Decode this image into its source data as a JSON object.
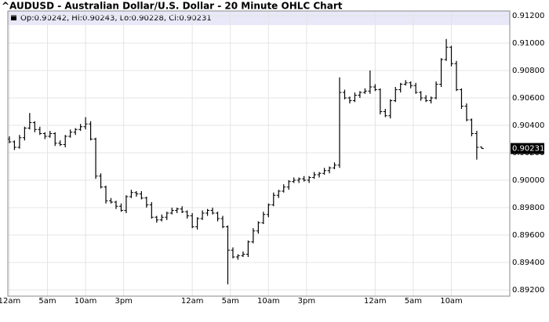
{
  "chart_data": {
    "type": "ohlc",
    "title": "^AUDUSD - Australian Dollar/U.S. Dollar - 20 Minute OHLC Chart",
    "ohlc_legend": "Op:0.90242, Hi:0.90243, Lo:0.90228, Cl:0.90231",
    "color": "#000000",
    "grid": true,
    "xlim": [
      -0.3,
      98.5
    ],
    "xticks": [
      {
        "value": 0,
        "label": "12am"
      },
      {
        "value": 7.5,
        "label": "5am"
      },
      {
        "value": 15,
        "label": "10am"
      },
      {
        "value": 22.5,
        "label": "3pm"
      },
      {
        "value": 36,
        "label": "12am"
      },
      {
        "value": 43.5,
        "label": "5am"
      },
      {
        "value": 51,
        "label": "10am"
      },
      {
        "value": 58.5,
        "label": "3pm"
      },
      {
        "value": 72,
        "label": "12am"
      },
      {
        "value": 79.5,
        "label": "5am"
      },
      {
        "value": 87,
        "label": "10am"
      }
    ],
    "ylim": [
      0.892,
      0.912
    ],
    "yticks": [
      {
        "value": 0.892,
        "label": "0.89200"
      },
      {
        "value": 0.894,
        "label": "0.89400"
      },
      {
        "value": 0.896,
        "label": "0.89600"
      },
      {
        "value": 0.898,
        "label": "0.89800"
      },
      {
        "value": 0.9,
        "label": "0.90000"
      },
      {
        "value": 0.902,
        "label": "0.90200"
      },
      {
        "value": 0.904,
        "label": "0.90400"
      },
      {
        "value": 0.906,
        "label": "0.90600"
      },
      {
        "value": 0.908,
        "label": "0.90800"
      },
      {
        "value": 0.91,
        "label": "0.91000"
      },
      {
        "value": 0.912,
        "label": "0.91200"
      }
    ],
    "open": [
      0.903,
      0.9028,
      0.9024,
      0.9031,
      0.9038,
      0.9042,
      0.9037,
      0.9034,
      0.9032,
      0.9034,
      0.9027,
      0.9026,
      0.9032,
      0.9035,
      0.9037,
      0.9039,
      0.9041,
      0.903,
      0.9003,
      0.8995,
      0.8985,
      0.8984,
      0.8981,
      0.8978,
      0.8988,
      0.8991,
      0.899,
      0.8987,
      0.8982,
      0.8973,
      0.8971,
      0.8973,
      0.8976,
      0.8978,
      0.8979,
      0.8977,
      0.8974,
      0.8966,
      0.8972,
      0.8976,
      0.8978,
      0.8976,
      0.8972,
      0.8966,
      0.8949,
      0.8944,
      0.8945,
      0.8946,
      0.8955,
      0.8963,
      0.8969,
      0.8975,
      0.8982,
      0.8989,
      0.8992,
      0.8995,
      0.8999,
      0.9,
      0.9001,
      0.9,
      0.9002,
      0.9004,
      0.9005,
      0.9007,
      0.9009,
      0.9011,
      0.9064,
      0.906,
      0.9058,
      0.9062,
      0.9064,
      0.9065,
      0.9068,
      0.9066,
      0.905,
      0.9047,
      0.9058,
      0.9066,
      0.907,
      0.9071,
      0.9069,
      0.9064,
      0.906,
      0.9058,
      0.906,
      0.907,
      0.9088,
      0.9097,
      0.9085,
      0.9066,
      0.9054,
      0.9044,
      0.9034,
      0.90242
    ],
    "high": [
      0.9032,
      0.9029,
      0.9033,
      0.9039,
      0.9049,
      0.9043,
      0.9039,
      0.9035,
      0.9036,
      0.9035,
      0.9029,
      0.9033,
      0.9037,
      0.9038,
      0.9041,
      0.9046,
      0.9043,
      0.9031,
      0.9005,
      0.8996,
      0.8987,
      0.8985,
      0.8983,
      0.8989,
      0.8993,
      0.8992,
      0.8992,
      0.8988,
      0.8984,
      0.8974,
      0.8975,
      0.8977,
      0.898,
      0.898,
      0.8981,
      0.8978,
      0.8976,
      0.8973,
      0.8978,
      0.8979,
      0.898,
      0.8977,
      0.8974,
      0.8967,
      0.8951,
      0.8946,
      0.8948,
      0.8956,
      0.8965,
      0.897,
      0.8977,
      0.8983,
      0.8991,
      0.8993,
      0.8997,
      0.9,
      0.9002,
      0.9002,
      0.9003,
      0.9003,
      0.9006,
      0.9006,
      0.9009,
      0.901,
      0.9013,
      0.9075,
      0.9066,
      0.9061,
      0.9064,
      0.9065,
      0.9067,
      0.908,
      0.907,
      0.9067,
      0.9052,
      0.9059,
      0.9068,
      0.9071,
      0.9073,
      0.9072,
      0.9071,
      0.9065,
      0.9062,
      0.9061,
      0.9072,
      0.9089,
      0.9103,
      0.9098,
      0.9087,
      0.9067,
      0.9056,
      0.9045,
      0.9036,
      0.90243
    ],
    "low": [
      0.9027,
      0.9022,
      0.9023,
      0.9029,
      0.9037,
      0.9035,
      0.9033,
      0.903,
      0.9031,
      0.9025,
      0.9025,
      0.9024,
      0.9031,
      0.9033,
      0.9036,
      0.9037,
      0.9029,
      0.9001,
      0.8994,
      0.8983,
      0.8983,
      0.8979,
      0.8977,
      0.8976,
      0.8987,
      0.8988,
      0.8986,
      0.898,
      0.8972,
      0.8969,
      0.897,
      0.8971,
      0.8975,
      0.8976,
      0.8976,
      0.8972,
      0.8965,
      0.8964,
      0.8971,
      0.8974,
      0.8975,
      0.897,
      0.8965,
      0.8924,
      0.8943,
      0.8942,
      0.8944,
      0.8944,
      0.8954,
      0.8961,
      0.8968,
      0.8973,
      0.8981,
      0.8987,
      0.8991,
      0.8993,
      0.8998,
      0.8998,
      0.8999,
      0.8998,
      0.9001,
      0.9002,
      0.9004,
      0.9005,
      0.9008,
      0.9009,
      0.9059,
      0.9056,
      0.9057,
      0.906,
      0.9063,
      0.9063,
      0.9065,
      0.9048,
      0.9046,
      0.9045,
      0.9057,
      0.9064,
      0.9069,
      0.9067,
      0.9063,
      0.9058,
      0.9057,
      0.9056,
      0.9059,
      0.9068,
      0.9087,
      0.9083,
      0.9065,
      0.9052,
      0.9043,
      0.9032,
      0.9015,
      0.90228
    ],
    "close": [
      0.9028,
      0.9024,
      0.9031,
      0.9038,
      0.9042,
      0.9037,
      0.9034,
      0.9032,
      0.9034,
      0.9027,
      0.9026,
      0.9032,
      0.9035,
      0.9037,
      0.9039,
      0.9041,
      0.903,
      0.9003,
      0.8995,
      0.8985,
      0.8984,
      0.8981,
      0.8978,
      0.8988,
      0.8991,
      0.899,
      0.8987,
      0.8982,
      0.8973,
      0.8971,
      0.8973,
      0.8976,
      0.8978,
      0.8979,
      0.8977,
      0.8974,
      0.8966,
      0.8972,
      0.8976,
      0.8978,
      0.8976,
      0.8972,
      0.8966,
      0.8949,
      0.8944,
      0.8945,
      0.8946,
      0.8955,
      0.8963,
      0.8969,
      0.8975,
      0.8982,
      0.8989,
      0.8992,
      0.8995,
      0.8999,
      0.9,
      0.9001,
      0.9,
      0.9002,
      0.9004,
      0.9005,
      0.9007,
      0.9009,
      0.9011,
      0.9064,
      0.906,
      0.9058,
      0.9062,
      0.9064,
      0.9065,
      0.9068,
      0.9066,
      0.905,
      0.9047,
      0.9058,
      0.9066,
      0.907,
      0.9071,
      0.9069,
      0.9064,
      0.906,
      0.9058,
      0.906,
      0.907,
      0.9088,
      0.9097,
      0.9085,
      0.9066,
      0.9054,
      0.9044,
      0.9034,
      0.9024,
      0.90231
    ]
  }
}
